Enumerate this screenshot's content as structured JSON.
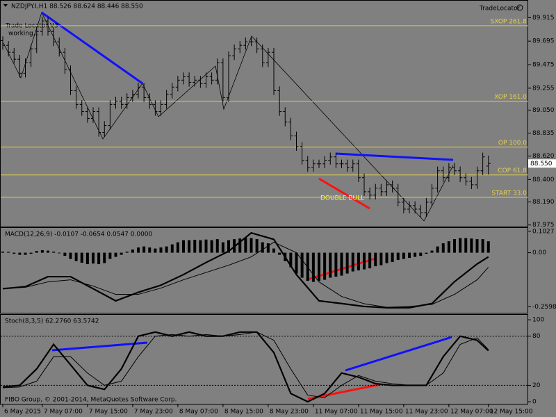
{
  "chart_data": [
    {
      "type": "ohlc",
      "title": "NZDJPY.I,H1  88.526 88.624 88.446 88.550",
      "brand": "TradeLocator",
      "annotations": [
        "Trade Locator V3",
        "working...",
        "DOUBLE BULL"
      ],
      "categories": [
        "6 May 2015",
        null,
        null,
        null,
        null,
        null,
        null,
        "7 May 07:00",
        null,
        null,
        null,
        null,
        null,
        null,
        null,
        "7 May 15:00",
        null,
        null,
        null,
        null,
        null,
        null,
        null,
        "7 May 23:00",
        null,
        null,
        null,
        null,
        null,
        null,
        null,
        "8 May 07:00",
        null,
        null,
        null,
        null,
        null,
        null,
        null,
        "8 May 15:00",
        null,
        null,
        null,
        null,
        null,
        null,
        null,
        "8 May 23:00",
        null,
        null,
        null,
        null,
        null,
        null,
        null,
        "11 May 07:00",
        null,
        null,
        null,
        null,
        null,
        null,
        null,
        "11 May 15:00",
        null,
        null,
        null,
        null,
        null,
        null,
        null,
        "11 May 23:00",
        null,
        null,
        null,
        null,
        null,
        null,
        null,
        "12 May 07:00",
        null,
        null,
        null,
        null,
        null,
        null,
        "12 May 15:00"
      ],
      "open": [
        89.7,
        89.656,
        89.591,
        89.526,
        89.395,
        89.493,
        89.623,
        89.786,
        89.884,
        89.786,
        89.689,
        89.591,
        89.428,
        89.232,
        89.102,
        89.036,
        88.971,
        89.036,
        88.841,
        88.906,
        89.102,
        89.134,
        89.102,
        89.167,
        89.199,
        89.265,
        89.167,
        89.102,
        89.036,
        89.102,
        89.199,
        89.265,
        89.33,
        89.362,
        89.31,
        89.33,
        89.297,
        89.362,
        89.33,
        89.493,
        89.167,
        89.558,
        89.623,
        89.656,
        89.689,
        89.689,
        89.623,
        89.493,
        89.591,
        89.232,
        89.036,
        88.938,
        88.808,
        88.71,
        88.58,
        88.514,
        88.547,
        88.547,
        88.58,
        88.612,
        88.547,
        88.547,
        88.514,
        88.547,
        88.417,
        88.286,
        88.254,
        88.319,
        88.286,
        88.351,
        88.319,
        88.188,
        88.123,
        88.156,
        88.123,
        88.09,
        88.188,
        88.319,
        88.482,
        88.417,
        88.514,
        88.482,
        88.417,
        88.384,
        88.351,
        88.482,
        88.526
      ],
      "high": [
        89.74,
        89.696,
        89.631,
        89.566,
        89.533,
        89.663,
        89.826,
        89.924,
        89.924,
        89.826,
        89.729,
        89.631,
        89.468,
        89.272,
        89.142,
        89.076,
        89.076,
        89.076,
        88.946,
        89.142,
        89.174,
        89.174,
        89.207,
        89.239,
        89.305,
        89.305,
        89.207,
        89.142,
        89.142,
        89.239,
        89.305,
        89.37,
        89.402,
        89.402,
        89.37,
        89.37,
        89.402,
        89.402,
        89.533,
        89.533,
        89.598,
        89.663,
        89.696,
        89.729,
        89.729,
        89.729,
        89.663,
        89.631,
        89.631,
        89.272,
        89.076,
        88.978,
        88.848,
        88.75,
        88.62,
        88.587,
        88.587,
        88.62,
        88.652,
        88.652,
        88.587,
        88.587,
        88.587,
        88.587,
        88.457,
        88.326,
        88.359,
        88.359,
        88.391,
        88.391,
        88.359,
        88.228,
        88.196,
        88.196,
        88.163,
        88.228,
        88.359,
        88.522,
        88.522,
        88.554,
        88.554,
        88.522,
        88.457,
        88.424,
        88.522,
        88.652,
        88.624
      ],
      "low": [
        89.616,
        89.551,
        89.486,
        89.355,
        89.355,
        89.453,
        89.583,
        89.746,
        89.746,
        89.649,
        89.551,
        89.388,
        89.192,
        89.062,
        88.996,
        88.931,
        88.931,
        88.801,
        88.801,
        88.866,
        89.062,
        89.062,
        89.062,
        89.127,
        89.159,
        89.127,
        89.062,
        88.996,
        88.996,
        89.062,
        89.159,
        89.225,
        89.29,
        89.27,
        89.27,
        89.257,
        89.257,
        89.29,
        89.29,
        89.127,
        89.127,
        89.518,
        89.583,
        89.616,
        89.649,
        89.583,
        89.453,
        89.453,
        89.192,
        88.996,
        88.898,
        88.768,
        88.67,
        88.54,
        88.474,
        88.474,
        88.507,
        88.507,
        88.54,
        88.507,
        88.507,
        88.474,
        88.474,
        88.377,
        88.246,
        88.214,
        88.214,
        88.246,
        88.246,
        88.279,
        88.148,
        88.083,
        88.083,
        88.083,
        88.05,
        88.05,
        88.148,
        88.279,
        88.377,
        88.377,
        88.442,
        88.377,
        88.344,
        88.311,
        88.311,
        88.442,
        88.446
      ],
      "close": [
        89.656,
        89.591,
        89.526,
        89.395,
        89.493,
        89.623,
        89.786,
        89.884,
        89.786,
        89.689,
        89.591,
        89.428,
        89.232,
        89.102,
        89.036,
        88.971,
        89.036,
        88.841,
        88.906,
        89.102,
        89.134,
        89.102,
        89.167,
        89.199,
        89.265,
        89.167,
        89.102,
        89.036,
        89.102,
        89.199,
        89.265,
        89.33,
        89.362,
        89.31,
        89.33,
        89.297,
        89.362,
        89.33,
        89.493,
        89.167,
        89.558,
        89.623,
        89.656,
        89.689,
        89.689,
        89.623,
        89.493,
        89.591,
        89.232,
        89.036,
        88.938,
        88.808,
        88.71,
        88.58,
        88.514,
        88.547,
        88.547,
        88.58,
        88.612,
        88.547,
        88.547,
        88.514,
        88.547,
        88.417,
        88.286,
        88.254,
        88.319,
        88.286,
        88.351,
        88.319,
        88.188,
        88.123,
        88.156,
        88.123,
        88.09,
        88.188,
        88.319,
        88.482,
        88.417,
        88.514,
        88.482,
        88.417,
        88.384,
        88.351,
        88.482,
        88.612,
        88.55
      ],
      "color": "#000000",
      "ylim": [
        87.96,
        90.08
      ],
      "yticks": [
        89.915,
        89.695,
        89.475,
        89.255,
        {
          "value": 89.05,
          "label": "89.050"
        },
        88.835,
        {
          "value": 88.62,
          "label": "88.620"
        },
        {
          "value": 88.4,
          "label": "88.400"
        },
        {
          "value": 88.19,
          "label": "88.190"
        },
        87.975
      ],
      "level_color": "#e6d24a",
      "levels": [
        {
          "label": "SXOP 261.8",
          "value": 89.839
        },
        {
          "label": "XOP 161.0",
          "value": 89.134
        },
        {
          "label": "OP 100.0",
          "value": 88.704
        },
        {
          "label": "COP 61.8",
          "value": 88.443
        },
        {
          "label": "START 33.0",
          "value": 88.234
        }
      ],
      "current_price": {
        "value": 88.55,
        "label": "88.550"
      }
    },
    {
      "type": "macd",
      "title": "MACD(12,26,9) -0.0107 -0.0654 0.0547 0.0000",
      "histogram": [
        0.005,
        0.004,
        -0.005,
        -0.01,
        -0.01,
        -0.005,
        0.008,
        0.012,
        0.01,
        0.005,
        -0.003,
        -0.015,
        -0.03,
        -0.04,
        -0.048,
        -0.055,
        -0.052,
        -0.055,
        -0.05,
        -0.03,
        -0.02,
        -0.01,
        0.005,
        0.015,
        0.025,
        0.03,
        0.025,
        0.02,
        0.025,
        0.03,
        0.04,
        0.05,
        0.06,
        0.06,
        0.062,
        0.06,
        0.063,
        0.06,
        0.065,
        0.05,
        0.06,
        0.065,
        0.068,
        0.07,
        0.07,
        0.065,
        0.05,
        0.045,
        0.02,
        -0.01,
        -0.04,
        -0.07,
        -0.1,
        -0.12,
        -0.135,
        -0.14,
        -0.135,
        -0.13,
        -0.12,
        -0.115,
        -0.11,
        -0.1,
        -0.09,
        -0.085,
        -0.08,
        -0.075,
        -0.065,
        -0.06,
        -0.05,
        -0.045,
        -0.035,
        -0.03,
        -0.025,
        -0.02,
        -0.015,
        -0.005,
        0.01,
        0.03,
        0.045,
        0.055,
        0.065,
        0.07,
        0.07,
        0.068,
        0.065,
        0.065,
        0.0547
      ],
      "color": "#000000",
      "series": [
        {
          "color": "#000000",
          "width": 2.2,
          "x": [
            0,
            4,
            8,
            12,
            16,
            20,
            24,
            28,
            32,
            36,
            40,
            44,
            48,
            52,
            56,
            60,
            64,
            68,
            72,
            76,
            80,
            84,
            86
          ],
          "values": [
            -0.173,
            -0.163,
            -0.115,
            -0.115,
            -0.173,
            -0.231,
            -0.19,
            -0.156,
            -0.105,
            -0.047,
            0.007,
            0.095,
            0.064,
            -0.105,
            -0.231,
            -0.244,
            -0.258,
            -0.264,
            -0.264,
            -0.244,
            -0.139,
            -0.054,
            -0.02
          ]
        },
        {
          "color": "#000000",
          "width": 1,
          "x": [
            0,
            4,
            8,
            12,
            16,
            20,
            24,
            28,
            32,
            36,
            40,
            44,
            48,
            52,
            56,
            60,
            64,
            68,
            72,
            76,
            80,
            84,
            86
          ],
          "values": [
            -0.17,
            -0.166,
            -0.14,
            -0.13,
            -0.16,
            -0.2,
            -0.2,
            -0.17,
            -0.13,
            -0.095,
            -0.06,
            -0.02,
            0.05,
            0.0,
            -0.14,
            -0.21,
            -0.245,
            -0.262,
            -0.258,
            -0.248,
            -0.2,
            -0.13,
            -0.07
          ]
        }
      ],
      "ylim": [
        -0.2915,
        0.122
      ],
      "yticks": [
        0.1027,
        {
          "value": 0,
          "label": "0.00"
        },
        -0.2598
      ]
    },
    {
      "type": "line",
      "title": "Stoch(8,3,5) 62.2760 63.5742",
      "footer": "FIBO Group, © 2001-2014, MetaQuotes Software Corp.",
      "series": [
        {
          "color": "#000000",
          "width": 2.2,
          "x": [
            0,
            3,
            6,
            9,
            12,
            15,
            18,
            21,
            24,
            27,
            30,
            33,
            36,
            39,
            42,
            45,
            48,
            51,
            54,
            57,
            60,
            63,
            66,
            69,
            72,
            75,
            78,
            81,
            84,
            86
          ],
          "values": [
            18,
            20,
            40,
            70,
            45,
            20,
            15,
            40,
            80,
            85,
            80,
            85,
            80,
            80,
            85,
            85,
            60,
            10,
            0,
            10,
            35,
            30,
            22,
            20,
            20,
            20,
            55,
            80,
            75,
            62.276
          ]
        },
        {
          "color": "#000000",
          "width": 1,
          "x": [
            0,
            3,
            6,
            9,
            12,
            15,
            18,
            21,
            24,
            27,
            30,
            33,
            36,
            39,
            42,
            45,
            48,
            51,
            54,
            57,
            60,
            63,
            66,
            69,
            72,
            75,
            78,
            81,
            84,
            86
          ],
          "values": [
            17,
            18,
            25,
            55,
            55,
            35,
            20,
            25,
            55,
            80,
            82,
            80,
            82,
            80,
            82,
            85,
            75,
            40,
            8,
            5,
            20,
            32,
            25,
            22,
            20,
            20,
            35,
            70,
            78,
            63.5742
          ]
        }
      ],
      "ylim": [
        -3.4,
        106.9
      ],
      "yticks": [
        100,
        80,
        20,
        0
      ]
    }
  ]
}
